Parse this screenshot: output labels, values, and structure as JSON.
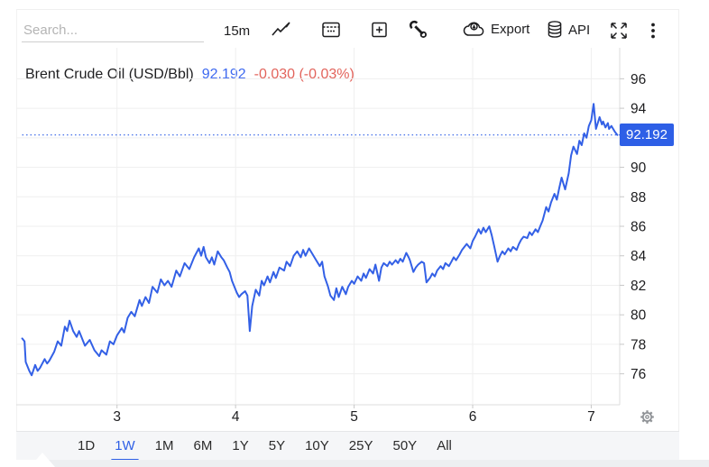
{
  "toolbar": {
    "search_placeholder": "Search...",
    "interval_label": "15m",
    "export_label": "Export",
    "api_label": "API"
  },
  "header": {
    "title": "Brent Crude Oil (USD/Bbl)",
    "price": "92.192",
    "change": "-0.030 (-0.03%)"
  },
  "price_axis": {
    "badge_value": "92.192"
  },
  "timeframes": {
    "items": [
      "1D",
      "1W",
      "1M",
      "6M",
      "1Y",
      "5Y",
      "10Y",
      "25Y",
      "50Y",
      "All"
    ],
    "active": "1W"
  },
  "colors": {
    "accent_blue": "#2e5fe6",
    "price_text_blue": "#3c68f0",
    "line_blue": "#3360e6",
    "change_red": "#e2635b",
    "grid": "#efefef",
    "axis": "#dcdcdc",
    "tick": "#c8c8c8",
    "axis_text": "#1d1d1f",
    "gear_gray": "#8f9296"
  },
  "chart_data": {
    "type": "line",
    "title": "Brent Crude Oil (USD/Bbl)",
    "last_price": 92.192,
    "change": -0.03,
    "change_pct": "-0.03%",
    "legend": [],
    "grid": true,
    "x_axis_position": "bottom",
    "y_axis_position": "right",
    "x_ticks": [
      3,
      4,
      5,
      6,
      7
    ],
    "y_grid_values": [
      76,
      78,
      80,
      82,
      84,
      86,
      88,
      90,
      92,
      94,
      96
    ],
    "y_label_values": [
      76,
      78,
      80,
      82,
      84,
      86,
      88,
      90,
      94,
      96
    ],
    "xlim": [
      2.15,
      7.24
    ],
    "ylim": [
      73.9,
      98.1
    ],
    "dotted_level": 92.192,
    "points": [
      [
        2.2,
        78.4
      ],
      [
        2.22,
        78.2
      ],
      [
        2.23,
        76.8
      ],
      [
        2.26,
        76.2
      ],
      [
        2.28,
        75.9
      ],
      [
        2.31,
        76.6
      ],
      [
        2.33,
        76.2
      ],
      [
        2.35,
        76.4
      ],
      [
        2.39,
        77.0
      ],
      [
        2.41,
        76.7
      ],
      [
        2.43,
        76.9
      ],
      [
        2.47,
        77.5
      ],
      [
        2.5,
        78.2
      ],
      [
        2.53,
        77.9
      ],
      [
        2.56,
        79.2
      ],
      [
        2.58,
        78.9
      ],
      [
        2.6,
        79.6
      ],
      [
        2.63,
        78.9
      ],
      [
        2.66,
        78.5
      ],
      [
        2.68,
        78.9
      ],
      [
        2.71,
        78.3
      ],
      [
        2.73,
        77.9
      ],
      [
        2.77,
        78.3
      ],
      [
        2.81,
        77.6
      ],
      [
        2.85,
        77.2
      ],
      [
        2.87,
        77.6
      ],
      [
        2.91,
        77.3
      ],
      [
        2.94,
        78.2
      ],
      [
        2.97,
        78.0
      ],
      [
        3.0,
        78.6
      ],
      [
        3.04,
        79.1
      ],
      [
        3.06,
        78.8
      ],
      [
        3.09,
        79.8
      ],
      [
        3.12,
        80.2
      ],
      [
        3.15,
        79.9
      ],
      [
        3.19,
        81.0
      ],
      [
        3.21,
        80.6
      ],
      [
        3.24,
        81.2
      ],
      [
        3.27,
        80.8
      ],
      [
        3.3,
        81.9
      ],
      [
        3.34,
        81.5
      ],
      [
        3.37,
        82.4
      ],
      [
        3.4,
        82.0
      ],
      [
        3.43,
        82.3
      ],
      [
        3.46,
        81.9
      ],
      [
        3.5,
        83.0
      ],
      [
        3.53,
        82.6
      ],
      [
        3.57,
        83.5
      ],
      [
        3.61,
        83.1
      ],
      [
        3.65,
        83.9
      ],
      [
        3.69,
        84.5
      ],
      [
        3.71,
        84.0
      ],
      [
        3.73,
        84.6
      ],
      [
        3.75,
        83.9
      ],
      [
        3.78,
        83.5
      ],
      [
        3.8,
        83.9
      ],
      [
        3.82,
        83.4
      ],
      [
        3.85,
        84.3
      ],
      [
        3.88,
        83.9
      ],
      [
        3.9,
        83.7
      ],
      [
        3.93,
        83.2
      ],
      [
        3.95,
        82.9
      ],
      [
        3.97,
        82.3
      ],
      [
        4.01,
        81.5
      ],
      [
        4.03,
        81.2
      ],
      [
        4.05,
        81.4
      ],
      [
        4.08,
        81.6
      ],
      [
        4.1,
        81.3
      ],
      [
        4.12,
        78.9
      ],
      [
        4.14,
        80.6
      ],
      [
        4.17,
        81.7
      ],
      [
        4.2,
        81.3
      ],
      [
        4.22,
        82.3
      ],
      [
        4.24,
        82.0
      ],
      [
        4.27,
        82.6
      ],
      [
        4.29,
        82.2
      ],
      [
        4.32,
        82.9
      ],
      [
        4.34,
        82.5
      ],
      [
        4.37,
        83.2
      ],
      [
        4.41,
        83.0
      ],
      [
        4.43,
        83.6
      ],
      [
        4.46,
        83.3
      ],
      [
        4.49,
        84.0
      ],
      [
        4.52,
        84.3
      ],
      [
        4.55,
        83.9
      ],
      [
        4.57,
        84.4
      ],
      [
        4.59,
        84.0
      ],
      [
        4.62,
        84.5
      ],
      [
        4.65,
        84.1
      ],
      [
        4.68,
        83.7
      ],
      [
        4.71,
        83.3
      ],
      [
        4.73,
        83.6
      ],
      [
        4.75,
        82.6
      ],
      [
        4.78,
        81.9
      ],
      [
        4.8,
        81.3
      ],
      [
        4.83,
        81.0
      ],
      [
        4.85,
        81.8
      ],
      [
        4.87,
        81.2
      ],
      [
        4.9,
        81.9
      ],
      [
        4.93,
        81.4
      ],
      [
        4.95,
        81.9
      ],
      [
        4.98,
        82.3
      ],
      [
        5.0,
        82.1
      ],
      [
        5.03,
        82.6
      ],
      [
        5.06,
        82.3
      ],
      [
        5.08,
        82.8
      ],
      [
        5.1,
        82.5
      ],
      [
        5.13,
        83.1
      ],
      [
        5.16,
        82.8
      ],
      [
        5.18,
        83.4
      ],
      [
        5.21,
        82.3
      ],
      [
        5.23,
        83.2
      ],
      [
        5.25,
        83.5
      ],
      [
        5.28,
        83.3
      ],
      [
        5.3,
        83.6
      ],
      [
        5.32,
        83.4
      ],
      [
        5.35,
        83.7
      ],
      [
        5.37,
        83.5
      ],
      [
        5.39,
        83.8
      ],
      [
        5.41,
        83.6
      ],
      [
        5.44,
        84.2
      ],
      [
        5.46,
        83.9
      ],
      [
        5.47,
        83.7
      ],
      [
        5.5,
        82.9
      ],
      [
        5.52,
        83.2
      ],
      [
        5.54,
        83.4
      ],
      [
        5.57,
        83.6
      ],
      [
        5.59,
        83.5
      ],
      [
        5.61,
        82.2
      ],
      [
        5.64,
        82.5
      ],
      [
        5.66,
        82.8
      ],
      [
        5.68,
        82.6
      ],
      [
        5.7,
        83.0
      ],
      [
        5.73,
        83.3
      ],
      [
        5.75,
        83.1
      ],
      [
        5.77,
        83.5
      ],
      [
        5.8,
        83.3
      ],
      [
        5.82,
        83.6
      ],
      [
        5.84,
        83.9
      ],
      [
        5.86,
        83.7
      ],
      [
        5.89,
        84.1
      ],
      [
        5.91,
        84.4
      ],
      [
        5.93,
        84.6
      ],
      [
        5.95,
        84.8
      ],
      [
        5.98,
        84.5
      ],
      [
        6.0,
        85.0
      ],
      [
        6.02,
        85.3
      ],
      [
        6.05,
        85.8
      ],
      [
        6.07,
        85.5
      ],
      [
        6.09,
        85.9
      ],
      [
        6.11,
        85.6
      ],
      [
        6.14,
        86.0
      ],
      [
        6.16,
        85.4
      ],
      [
        6.18,
        84.7
      ],
      [
        6.21,
        83.6
      ],
      [
        6.23,
        84.0
      ],
      [
        6.25,
        84.3
      ],
      [
        6.27,
        84.1
      ],
      [
        6.3,
        84.5
      ],
      [
        6.32,
        84.3
      ],
      [
        6.34,
        84.6
      ],
      [
        6.37,
        84.4
      ],
      [
        6.39,
        84.8
      ],
      [
        6.41,
        85.1
      ],
      [
        6.43,
        85.3
      ],
      [
        6.46,
        85.2
      ],
      [
        6.48,
        85.6
      ],
      [
        6.5,
        85.4
      ],
      [
        6.53,
        85.8
      ],
      [
        6.55,
        85.6
      ],
      [
        6.57,
        86.0
      ],
      [
        6.59,
        86.4
      ],
      [
        6.62,
        87.3
      ],
      [
        6.64,
        87.0
      ],
      [
        6.66,
        87.6
      ],
      [
        6.69,
        88.2
      ],
      [
        6.71,
        87.8
      ],
      [
        6.73,
        88.6
      ],
      [
        6.75,
        89.3
      ],
      [
        6.78,
        88.5
      ],
      [
        6.81,
        89.6
      ],
      [
        6.83,
        90.8
      ],
      [
        6.85,
        91.4
      ],
      [
        6.88,
        90.9
      ],
      [
        6.9,
        91.8
      ],
      [
        6.92,
        91.5
      ],
      [
        6.94,
        92.3
      ],
      [
        6.96,
        92.0
      ],
      [
        6.98,
        92.8
      ],
      [
        7.0,
        93.2
      ],
      [
        7.02,
        94.3
      ],
      [
        7.04,
        92.6
      ],
      [
        7.07,
        93.4
      ],
      [
        7.09,
        92.9
      ],
      [
        7.1,
        93.1
      ],
      [
        7.12,
        92.7
      ],
      [
        7.14,
        93.0
      ],
      [
        7.15,
        92.6
      ],
      [
        7.17,
        92.8
      ],
      [
        7.2,
        92.4
      ],
      [
        7.22,
        92.192
      ]
    ]
  }
}
